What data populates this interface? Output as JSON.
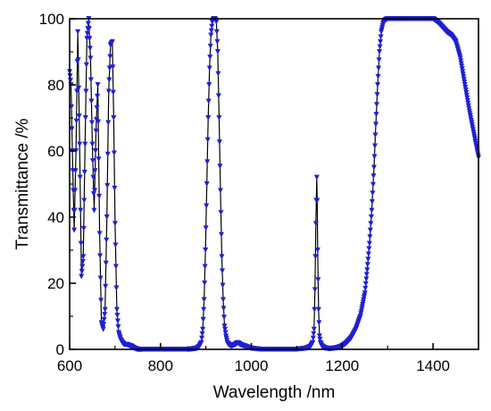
{
  "chart_data": {
    "type": "line",
    "xlabel": "Wavelength /nm",
    "ylabel": "Transmittance /%",
    "xlim": [
      600,
      1500
    ],
    "ylim": [
      0,
      100
    ],
    "x_ticks": [
      600,
      800,
      1000,
      1200,
      1400
    ],
    "y_ticks": [
      0,
      20,
      40,
      60,
      80,
      100
    ],
    "grid": false,
    "legend": "none",
    "line_color": "#000000",
    "marker": "down-triangle",
    "marker_color": "#1f1fd6",
    "series": [
      {
        "x": [
          600,
          603,
          606,
          610,
          614,
          618,
          622,
          626,
          630,
          634,
          638,
          642,
          646,
          650,
          654,
          658,
          662,
          666,
          670,
          674,
          678,
          682,
          686,
          690,
          694,
          697,
          700,
          704,
          708,
          712,
          716,
          720,
          725,
          730,
          735,
          740,
          745,
          750,
          760,
          780,
          800,
          820,
          840,
          860,
          870,
          880,
          885,
          890,
          893,
          896,
          899,
          902,
          905,
          908,
          911,
          914,
          917,
          920,
          923,
          926,
          929,
          932,
          935,
          938,
          941,
          944,
          947,
          950,
          955,
          960,
          965,
          970,
          975,
          980,
          985,
          990,
          995,
          1000,
          1020,
          1040,
          1060,
          1080,
          1100,
          1120,
          1130,
          1135,
          1138,
          1140,
          1142,
          1144,
          1145,
          1146,
          1148,
          1150,
          1152,
          1155,
          1160,
          1170,
          1180,
          1190,
          1200,
          1210,
          1220,
          1230,
          1240,
          1250,
          1255,
          1260,
          1265,
          1270,
          1274,
          1278,
          1282,
          1286,
          1290,
          1294,
          1300,
          1320,
          1340,
          1360,
          1380,
          1400,
          1410,
          1420,
          1430,
          1440,
          1450,
          1460,
          1470,
          1480,
          1490,
          1500
        ],
        "y": [
          84,
          80,
          60,
          36,
          60,
          96,
          62,
          22,
          28,
          62,
          94,
          100,
          88,
          62,
          42,
          66,
          80,
          35,
          8,
          6,
          12,
          40,
          78,
          92,
          93,
          70,
          38,
          12,
          5,
          3,
          2,
          1.5,
          1.5,
          1.2,
          1,
          0.5,
          0.2,
          0,
          0,
          0,
          0,
          0,
          0,
          0,
          0.1,
          0.3,
          0.8,
          2,
          6,
          15,
          30,
          50,
          70,
          85,
          95,
          99,
          100,
          100,
          99,
          90,
          70,
          48,
          28,
          15,
          7,
          4,
          2,
          1.5,
          1,
          1.2,
          1.5,
          2,
          1.5,
          1.2,
          1,
          0.7,
          0.5,
          0.3,
          0,
          0,
          0,
          0,
          0,
          0.3,
          0.8,
          2,
          6,
          18,
          38,
          52,
          45,
          30,
          12,
          4,
          2,
          1,
          0.5,
          0.2,
          0.3,
          0.5,
          1,
          2,
          3.5,
          6,
          10,
          17,
          24,
          32,
          42,
          55,
          68,
          80,
          90,
          96,
          98.5,
          99.5,
          100,
          100,
          100,
          100,
          100,
          100,
          99,
          97.5,
          96,
          95,
          93,
          88,
          80,
          72,
          65,
          58
        ]
      }
    ]
  }
}
